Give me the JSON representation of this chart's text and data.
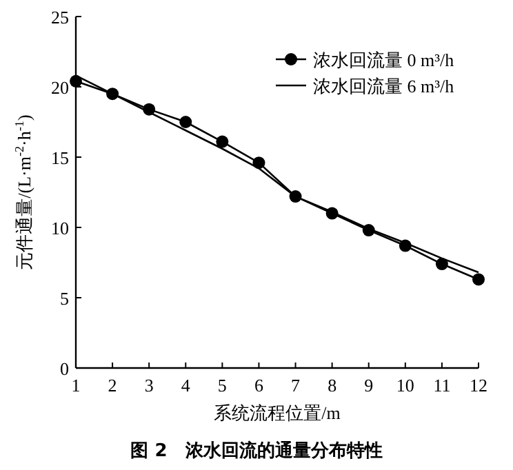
{
  "chart_data": {
    "type": "line",
    "xlabel": "系统流程位置/m",
    "ylabel": "元件通量/(L·m$^{-2}$·h$^{-1}$)",
    "annotations": [
      "图 2　浓水回流的通量分布特性"
    ],
    "x": [
      1,
      2,
      3,
      4,
      5,
      6,
      7,
      8,
      9,
      10,
      11,
      12
    ],
    "series": [
      {
        "name": "浓水回流量 0 m³/h",
        "color": "#000000",
        "marker": "circle",
        "values": [
          20.4,
          19.5,
          18.4,
          17.5,
          16.1,
          14.6,
          12.2,
          11.0,
          9.8,
          8.7,
          7.4,
          6.3
        ]
      },
      {
        "name": "浓水回流量 6 m³/h",
        "color": "#000000",
        "marker": "none",
        "values": [
          20.8,
          19.5,
          18.2,
          16.9,
          15.6,
          14.2,
          12.2,
          11.1,
          9.9,
          8.9,
          7.8,
          6.8
        ]
      }
    ],
    "xlim": [
      1,
      12
    ],
    "xticks": [
      1,
      2,
      3,
      4,
      5,
      6,
      7,
      8,
      9,
      10,
      11,
      12
    ],
    "ylim": [
      0,
      25
    ],
    "yticks": [
      0,
      5,
      10,
      15,
      20,
      25
    ],
    "legend": "top right",
    "grid": false,
    "line_style": "solid"
  }
}
